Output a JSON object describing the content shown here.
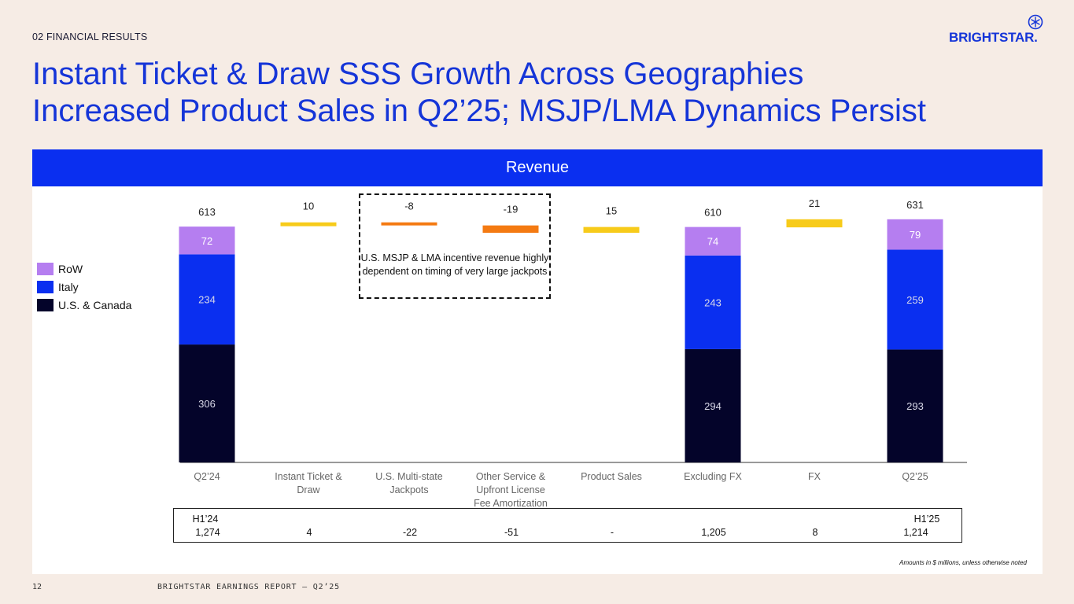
{
  "header": {
    "section_label": "02 FINANCIAL RESULTS",
    "logo_text": "BRIGHTSTAR.",
    "title_line1": "Instant Ticket & Draw SSS Growth Across Geographies",
    "title_line2": "Increased Product Sales in Q2’25; MSJP/LMA Dynamics Persist"
  },
  "panel": {
    "header": "Revenue",
    "callout": "U.S. MSJP & LMA incentive revenue highly dependent on timing of very large jackpots",
    "note": "Amounts in $ millions, unless otherwise noted"
  },
  "colors": {
    "row": "#b57ef0",
    "italy": "#0a2ff0",
    "us_canada": "#04042a",
    "positive_delta": "#f7cb1a",
    "negative_delta": "#f47a12",
    "brand_blue": "#1535d8"
  },
  "chart_data": {
    "type": "bar",
    "subtype": "waterfall-stacked",
    "title": "Revenue",
    "categories": [
      "Q2’24",
      "Instant Ticket & Draw",
      "U.S. Multi-state Jackpots",
      "Other Service & Upfront License Fee Amortization",
      "Product Sales",
      "Excluding FX",
      "FX",
      "Q2’25"
    ],
    "legend": [
      {
        "name": "RoW",
        "color": "#b57ef0"
      },
      {
        "name": "Italy",
        "color": "#0a2ff0"
      },
      {
        "name": "U.S. & Canada",
        "color": "#04042a"
      }
    ],
    "legend_position": "left",
    "stacked_totals": [
      {
        "category": "Q2’24",
        "total": 613,
        "segments": [
          {
            "name": "U.S. & Canada",
            "value": 306
          },
          {
            "name": "Italy",
            "value": 234
          },
          {
            "name": "RoW",
            "value": 72
          }
        ]
      },
      {
        "category": "Excluding FX",
        "total": 610,
        "segments": [
          {
            "name": "U.S. & Canada",
            "value": 294
          },
          {
            "name": "Italy",
            "value": 243
          },
          {
            "name": "RoW",
            "value": 74
          }
        ]
      },
      {
        "category": "Q2’25",
        "total": 631,
        "segments": [
          {
            "name": "U.S. & Canada",
            "value": 293
          },
          {
            "name": "Italy",
            "value": 259
          },
          {
            "name": "RoW",
            "value": 79
          }
        ]
      }
    ],
    "deltas": [
      {
        "category": "Instant Ticket & Draw",
        "value": 10,
        "label": "10"
      },
      {
        "category": "U.S. Multi-state Jackpots",
        "value": -8,
        "label": "-8"
      },
      {
        "category": "Other Service & Upfront License Fee Amortization",
        "value": -19,
        "label": "-19"
      },
      {
        "category": "Product Sales",
        "value": 15,
        "label": "15"
      },
      {
        "category": "FX",
        "value": 21,
        "label": "21"
      }
    ],
    "ylim": [
      0,
      650
    ],
    "grid": false
  },
  "h1_table": {
    "start_label": "H1’24",
    "end_label": "H1’25",
    "values": [
      "1,274",
      "4",
      "-22",
      "-51",
      "-",
      "1,205",
      "8",
      "1,214"
    ]
  },
  "footer": {
    "page_number": "12",
    "text": "BRIGHTSTAR EARNINGS REPORT – Q2’25"
  }
}
